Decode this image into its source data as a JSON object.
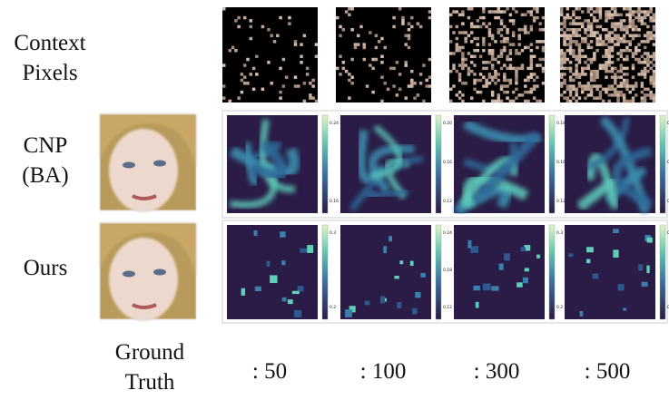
{
  "row_labels": {
    "context": [
      "Context",
      "Pixels"
    ],
    "cnp": [
      "CNP",
      "(BA)"
    ],
    "ours": [
      "Ours"
    ],
    "ground_truth": [
      "Ground",
      "Truth"
    ]
  },
  "column_labels": [
    ": 50",
    ": 100",
    ": 300",
    ": 500"
  ],
  "cnp_colorbars": [
    [
      "0.24",
      "0.16"
    ],
    [
      "0.20",
      "0.16",
      "0.12"
    ],
    [
      "0.18",
      "0.16",
      "0.12"
    ],
    [
      "0.18",
      "0.15",
      "0.12"
    ]
  ],
  "ours_colorbars": [
    [
      "0.3",
      "0.2"
    ],
    [
      "0.24",
      "0.18",
      "0.12"
    ],
    [
      "0.3",
      "0.2"
    ],
    [
      "0.31",
      "0.12"
    ]
  ]
}
